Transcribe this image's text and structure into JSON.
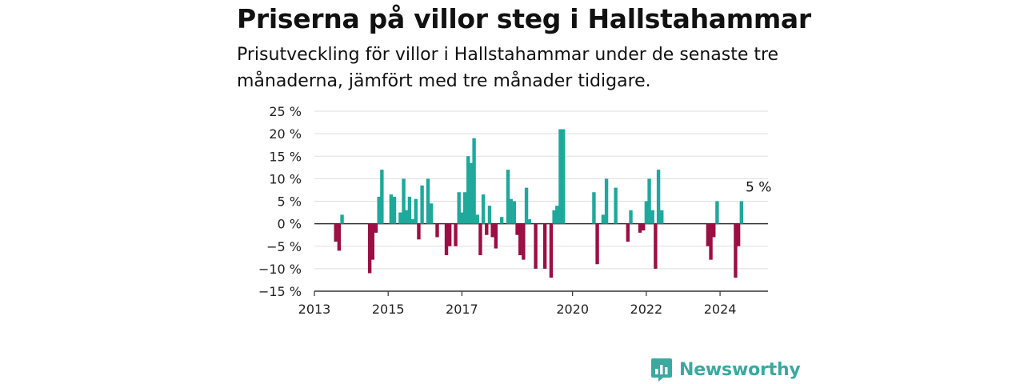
{
  "title": "Priserna på villor steg i Hallstahammar",
  "subtitle": "Prisutveckling för villor i Hallstahammar under de senaste tre månaderna, jämfört med tre månader tidigare.",
  "brand": {
    "name": "Newsworthy",
    "icon": "newsworthy-logo-icon",
    "color": "#3aa99f"
  },
  "chart_data": {
    "type": "bar",
    "xlabel": "",
    "ylabel": "",
    "xlim": [
      2013.0,
      2025.3
    ],
    "ylim": [
      -15,
      25
    ],
    "y_ticks": [
      25,
      20,
      15,
      10,
      5,
      0,
      -5,
      -10,
      -15
    ],
    "y_tick_labels": [
      "25 %",
      "20 %",
      "15 %",
      "10 %",
      "5 %",
      "0 %",
      "−5 %",
      "−10 %",
      "−15 %"
    ],
    "x_ticks": [
      2013,
      2015,
      2017,
      2020,
      2022,
      2024
    ],
    "x_tick_labels": [
      "2013",
      "2015",
      "2017",
      "2020",
      "2022",
      "2024"
    ],
    "colors": {
      "positive": "#1fa89c",
      "negative": "#9b0f44",
      "grid": "#dddddd",
      "axis": "#333333"
    },
    "grid": true,
    "annotation": {
      "text": "5 %",
      "x": 2025.0,
      "y": 5
    },
    "x": [
      2013.58,
      2013.67,
      2013.75,
      2014.5,
      2014.58,
      2014.67,
      2014.75,
      2014.83,
      2015.08,
      2015.17,
      2015.33,
      2015.42,
      2015.5,
      2015.58,
      2015.67,
      2015.75,
      2015.83,
      2015.92,
      2016.08,
      2016.17,
      2016.33,
      2016.58,
      2016.67,
      2016.83,
      2016.92,
      2017.0,
      2017.08,
      2017.17,
      2017.25,
      2017.33,
      2017.42,
      2017.5,
      2017.58,
      2017.67,
      2017.75,
      2017.83,
      2017.92,
      2018.08,
      2018.25,
      2018.33,
      2018.42,
      2018.5,
      2018.58,
      2018.67,
      2018.75,
      2018.83,
      2019.0,
      2019.25,
      2019.42,
      2019.5,
      2019.58,
      2019.67,
      2019.75,
      2020.58,
      2020.67,
      2020.83,
      2020.92,
      2021.17,
      2021.5,
      2021.58,
      2021.83,
      2021.92,
      2022.0,
      2022.08,
      2022.17,
      2022.25,
      2022.33,
      2022.42,
      2023.67,
      2023.75,
      2023.83,
      2023.92,
      2024.42,
      2024.5,
      2024.58,
      2024.75,
      2024.83
    ],
    "values": [
      -4,
      -6,
      2,
      -11,
      -8,
      -2,
      6,
      12,
      6.5,
      6,
      2.5,
      10,
      3,
      6,
      1,
      5.5,
      -3.5,
      8.5,
      10,
      4.5,
      -3,
      -7,
      -5,
      -5,
      7,
      2.5,
      7,
      15,
      13.5,
      19,
      2,
      -7,
      6.5,
      -2.5,
      4,
      -3,
      -5.5,
      1.5,
      12,
      5.5,
      5,
      -2.5,
      -7,
      -8,
      8,
      1,
      -10,
      -10,
      -12,
      3,
      4,
      21,
      21,
      7,
      -9,
      2,
      10,
      8,
      -4,
      3,
      -2,
      -1.5,
      5,
      10,
      3,
      -10,
      12,
      3,
      -5,
      -8,
      -3,
      5,
      -12,
      -5,
      5,
      0,
      0
    ]
  }
}
